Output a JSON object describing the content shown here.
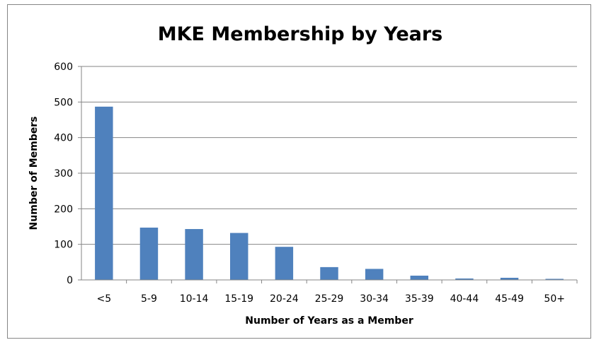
{
  "chart_data": {
    "type": "bar",
    "title": "MKE Membership by Years",
    "xlabel": "Number of Years as a Member",
    "ylabel": "Number of Members",
    "categories": [
      "<5",
      "5-9",
      "10-14",
      "15-19",
      "20-24",
      "25-29",
      "30-34",
      "35-39",
      "40-44",
      "45-49",
      "50+"
    ],
    "series": [
      {
        "values": [
          487,
          147,
          143,
          132,
          93,
          36,
          31,
          12,
          4,
          6,
          3
        ],
        "color": "#4F81BD"
      }
    ],
    "ylim": [
      0,
      600
    ],
    "yticks": [
      0,
      100,
      200,
      300,
      400,
      500,
      600
    ],
    "grid": true,
    "legend": "none"
  }
}
